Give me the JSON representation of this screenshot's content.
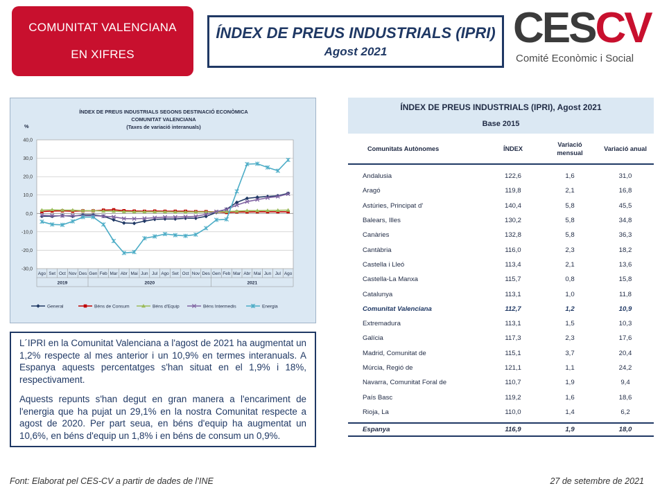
{
  "header": {
    "region_line1": "COMUNITAT VALENCIANA",
    "region_line2": "EN XIFRES",
    "title": "ÍNDEX DE PREUS INDUSTRIALS (IPRI)",
    "subtitle": "Agost 2021",
    "logo_ces": "CES",
    "logo_cv": "CV",
    "logo_sub": "Comité Econòmic i Social"
  },
  "colors": {
    "red": "#c8102e",
    "navy": "#1f3864",
    "panel": "#dbe8f3"
  },
  "chart_data": {
    "type": "line",
    "title": "ÍNDEX DE PREUS INDUSTRIALS SEGONS DESTINACIÓ ECONÒMICA",
    "subtitle1": "COMUNITAT VALENCIANA",
    "subtitle2": "(Taxes de variació interanuals)",
    "ylabel": "%",
    "ylim": [
      -30,
      40
    ],
    "yticks": [
      "40,0",
      "30,0",
      "20,0",
      "10,0",
      "0,0",
      "-10,0",
      "-20,0",
      "-30,0"
    ],
    "categories": [
      "Ago",
      "Set",
      "Oct",
      "Nov",
      "Des",
      "Gen",
      "Feb",
      "Mar",
      "Abr",
      "Mai",
      "Jun",
      "Jul",
      "Ago",
      "Set",
      "Oct",
      "Nov",
      "Des",
      "Gen",
      "Feb",
      "Mar",
      "Abr",
      "Mai",
      "Jun",
      "Jul",
      "Ago"
    ],
    "years": [
      {
        "label": "2019",
        "start": 0,
        "end": 4
      },
      {
        "label": "2020",
        "start": 5,
        "end": 16
      },
      {
        "label": "2021",
        "start": 17,
        "end": 24
      }
    ],
    "series": [
      {
        "name": "General",
        "color": "#1f3864",
        "marker": "diamond",
        "values": [
          -1.5,
          -1.5,
          -1.2,
          -1.5,
          -0.8,
          -0.8,
          -1.5,
          -3.5,
          -5.2,
          -5.4,
          -4.2,
          -3.2,
          -3.0,
          -3.0,
          -2.6,
          -2.6,
          -1.6,
          0.5,
          2.3,
          6.0,
          8.2,
          8.8,
          9.2,
          9.6,
          10.9
        ]
      },
      {
        "name": "Béns de Consum",
        "color": "#c00000",
        "marker": "square",
        "values": [
          1.0,
          1.3,
          1.4,
          1.2,
          1.4,
          1.4,
          1.8,
          2.0,
          1.5,
          1.3,
          1.2,
          1.3,
          1.2,
          1.2,
          1.2,
          1.0,
          1.0,
          0.8,
          0.5,
          0.8,
          0.8,
          0.9,
          0.9,
          0.9,
          0.9
        ]
      },
      {
        "name": "Béns d'Equip",
        "color": "#9bbb59",
        "marker": "triangle",
        "values": [
          1.8,
          2.0,
          1.8,
          1.8,
          1.5,
          1.5,
          1.3,
          1.2,
          1.0,
          0.9,
          0.9,
          0.9,
          0.9,
          0.8,
          0.8,
          0.8,
          0.8,
          0.8,
          1.0,
          1.2,
          1.5,
          1.5,
          1.6,
          1.7,
          1.8
        ]
      },
      {
        "name": "Béns Intermedis",
        "color": "#8064a2",
        "marker": "cross",
        "values": [
          -1.0,
          -1.2,
          -1.3,
          -1.2,
          -1.2,
          -1.2,
          -1.5,
          -1.9,
          -2.8,
          -2.9,
          -2.7,
          -2.3,
          -2.0,
          -2.0,
          -1.8,
          -1.6,
          -0.5,
          1.0,
          2.2,
          4.5,
          6.4,
          7.5,
          8.5,
          9.2,
          10.6
        ]
      },
      {
        "name": "Energia",
        "color": "#4bacc6",
        "marker": "star",
        "values": [
          -4.5,
          -6.0,
          -6.2,
          -4.3,
          -2.0,
          -2.0,
          -6.0,
          -15.0,
          -21.5,
          -21.0,
          -13.5,
          -12.5,
          -11.2,
          -11.8,
          -12.2,
          -11.5,
          -8.0,
          -3.5,
          -3.2,
          12.0,
          26.8,
          27.0,
          25.0,
          23.2,
          29.1
        ]
      }
    ]
  },
  "body_text": {
    "para1": "L´IPRI en la Comunitat Valenciana a l'agost de 2021 ha augmentat un 1,2% respecte al mes anterior i un 10,9% en termes interanuals. A Espanya aquests percentatges s'han situat en el 1,9% i 18%, respectivament.",
    "para2": "Aquests repunts s'han degut en gran manera a l'encariment de l'energia que ha pujat un 29,1% en la nostra Comunitat respecte a agost de 2020. Per part seua, en béns d'equip ha augmentat un 10,6%, en béns d'equip un 1,8% i en béns de consum un 0,9%."
  },
  "table": {
    "title": "ÍNDEX DE PREUS INDUSTRIALS (IPRI), Agost 2021",
    "base": "Base 2015",
    "headers": {
      "ca": "Comunitats Autònomes",
      "index": "ÍNDEX",
      "mensual_l1": "Variació",
      "mensual_l2": "mensual",
      "anual": "Variació anual"
    },
    "rows": [
      {
        "name": "Andalusia",
        "index": "122,6",
        "mensual": "1,6",
        "anual": "31,0"
      },
      {
        "name": "Aragó",
        "index": "119,8",
        "mensual": "2,1",
        "anual": "16,8"
      },
      {
        "name": "Astúries, Principat d'",
        "index": "140,4",
        "mensual": "5,8",
        "anual": "45,5"
      },
      {
        "name": "Balears, Illes",
        "index": "130,2",
        "mensual": "5,8",
        "anual": "34,8"
      },
      {
        "name": "Canàries",
        "index": "132,8",
        "mensual": "5,8",
        "anual": "36,3"
      },
      {
        "name": "Cantàbria",
        "index": "116,0",
        "mensual": "2,3",
        "anual": "18,2"
      },
      {
        "name": "Castella i Lleó",
        "index": "113,4",
        "mensual": "2,1",
        "anual": "13,6"
      },
      {
        "name": "Castella-La Manxa",
        "index": "115,7",
        "mensual": "0,8",
        "anual": "15,8"
      },
      {
        "name": "Catalunya",
        "index": "113,1",
        "mensual": "1,0",
        "anual": "11,8"
      },
      {
        "name": "Comunitat Valenciana",
        "index": "112,7",
        "mensual": "1,2",
        "anual": "10,9",
        "highlight": true
      },
      {
        "name": "Extremadura",
        "index": "113,1",
        "mensual": "1,5",
        "anual": "10,3"
      },
      {
        "name": "Galícia",
        "index": "117,3",
        "mensual": "2,3",
        "anual": "17,6"
      },
      {
        "name": "Madrid, Comunitat de",
        "index": "115,1",
        "mensual": "3,7",
        "anual": "20,4"
      },
      {
        "name": "Múrcia, Regió de",
        "index": "121,1",
        "mensual": "1,1",
        "anual": "24,2"
      },
      {
        "name": "Navarra, Comunitat Foral de",
        "index": "110,7",
        "mensual": "1,9",
        "anual": "9,4"
      },
      {
        "name": "País Basc",
        "index": "119,2",
        "mensual": "1,6",
        "anual": "18,6"
      },
      {
        "name": "Rioja, La",
        "index": "110,0",
        "mensual": "1,4",
        "anual": "6,2"
      }
    ],
    "total": {
      "name": "Espanya",
      "index": "116,9",
      "mensual": "1,9",
      "anual": "18,0"
    }
  },
  "footer": {
    "source": "Font: Elaborat pel CES-CV a partir de dades de l’INE",
    "date": "27 de setembre de 2021"
  }
}
